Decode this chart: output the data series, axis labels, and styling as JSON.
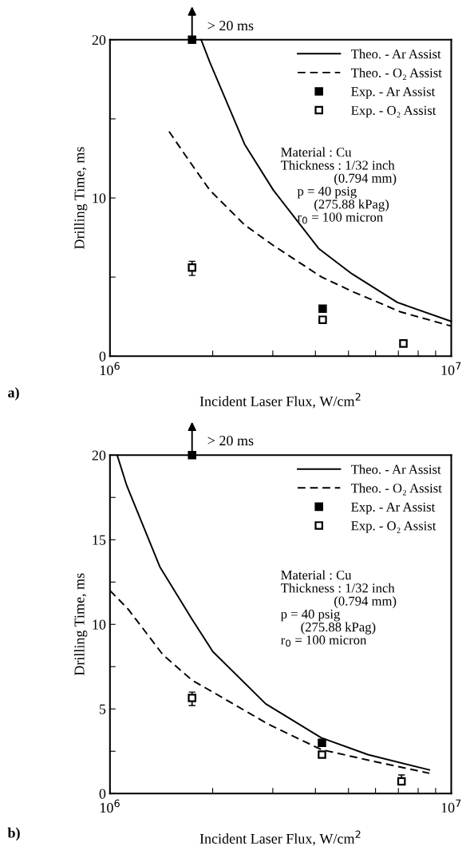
{
  "chart_data": [
    {
      "type": "line",
      "xlabel": "Incident Laser Flux, W/cm$^{2}$",
      "ylabel": "Drilling Time, ms",
      "log": "x",
      "xlim": [
        1000000,
        10000000
      ],
      "xticks": [
        {
          "value": 1000000,
          "label": "10$^{6}$"
        },
        {
          "value": 2000000,
          "label": null
        },
        {
          "value": 3000000,
          "label": null
        },
        {
          "value": 4000000,
          "label": null
        },
        {
          "value": 5000000,
          "label": null
        },
        {
          "value": 6000000,
          "label": null
        },
        {
          "value": 7000000,
          "label": null
        },
        {
          "value": 8000000,
          "label": null
        },
        {
          "value": 9000000,
          "label": null
        },
        {
          "value": 10000000,
          "label": "10$^{7}$"
        }
      ],
      "ylim": [
        0,
        20
      ],
      "yticks": [
        0,
        {
          "value": 5,
          "label": null
        },
        10,
        {
          "value": 15,
          "label": null
        },
        20
      ],
      "grid": false,
      "legend": "top right",
      "annotations": [
        "a)",
        "Material : Cu\nThickness : 1/32 inch\n                (0.794 mm)\n     p = 40 psig\n          (275.88 kPag)\n     r$_{0}$ = 100 micron",
        "> 20 ms"
      ],
      "series": [
        {
          "name": "Theo. - Ar Assist",
          "color": "#000000",
          "line_style": "solid",
          "marker": "none",
          "x": [
            1850000,
            1960000,
            2480000,
            3010000,
            4090000,
            5120000,
            6950000,
            10000000
          ],
          "values": [
            20,
            18.6,
            13.4,
            10.5,
            6.8,
            5.2,
            3.4,
            2.2
          ]
        },
        {
          "name": "Theo. - O₂ Assist",
          "color": "#000000",
          "line_style": "dashed",
          "marker": "none",
          "x": [
            1490000,
            1700000,
            1960000,
            2480000,
            3010000,
            4170000,
            5120000,
            7100000,
            10000000
          ],
          "values": [
            14.2,
            12.4,
            10.5,
            8.3,
            7.0,
            5.0,
            4.1,
            2.8,
            1.9
          ]
        },
        {
          "name": "Exp. - Ar Assist",
          "type": "scatter",
          "color": "#000000",
          "marker": "square",
          "x": [
            1740000,
            4200000
          ],
          "values": [
            20,
            3.0
          ]
        },
        {
          "name": "Exp. - O₂ Assist",
          "type": "scatter",
          "color": "#ffffff",
          "marker": "square",
          "x": [
            1740000,
            4200000,
            7240000
          ],
          "values": [
            5.6,
            2.3,
            0.8
          ],
          "errors": [
            [
              5.1,
              6.0
            ],
            null,
            null
          ]
        }
      ]
    },
    {
      "type": "line",
      "xlabel": "Incident Laser Flux, W/cm$^{2}$",
      "ylabel": "Drilling Time, ms",
      "log": "x",
      "xlim": [
        1000000,
        10000000
      ],
      "xticks": [
        {
          "value": 1000000,
          "label": "10$^{6}$"
        },
        {
          "value": 2000000,
          "label": null
        },
        {
          "value": 3000000,
          "label": null
        },
        {
          "value": 4000000,
          "label": null
        },
        {
          "value": 5000000,
          "label": null
        },
        {
          "value": 6000000,
          "label": null
        },
        {
          "value": 7000000,
          "label": null
        },
        {
          "value": 8000000,
          "label": null
        },
        {
          "value": 9000000,
          "label": null
        },
        {
          "value": 10000000,
          "label": "10$^{7}$"
        }
      ],
      "ylim": [
        0,
        20
      ],
      "yticks": [
        0,
        {
          "value": 2.5,
          "label": null
        },
        5,
        {
          "value": 7.5,
          "label": null
        },
        10,
        {
          "value": 12.5,
          "label": null
        },
        15,
        {
          "value": 17.5,
          "label": null
        },
        20
      ],
      "grid": false,
      "legend": "top right",
      "annotations": [
        "b)",
        "Material : Cu\nThickness : 1/32 inch\n                (0.794 mm)\np = 40 psig\n      (275.88 kPag)\nr$_{0}$ = 100 micron",
        "> 20 ms"
      ],
      "series": [
        {
          "name": "Theo. - Ar Assist",
          "color": "#000000",
          "line_style": "solid",
          "marker": "none",
          "x": [
            1050000,
            1120000,
            1400000,
            1740000,
            2000000,
            2860000,
            4160000,
            5700000,
            8630000
          ],
          "values": [
            20,
            18.2,
            13.4,
            10.3,
            8.4,
            5.3,
            3.3,
            2.3,
            1.4
          ]
        },
        {
          "name": "Theo. - O₂ Assist",
          "color": "#000000",
          "line_style": "dashed",
          "marker": "none",
          "x": [
            1000000,
            1130000,
            1430000,
            1740000,
            2000000,
            2910000,
            4160000,
            5930000,
            8630000
          ],
          "values": [
            12.0,
            10.9,
            8.2,
            6.7,
            6.0,
            4.1,
            2.6,
            1.9,
            1.2
          ]
        },
        {
          "name": "Exp. - Ar Assist",
          "type": "scatter",
          "color": "#000000",
          "marker": "square",
          "x": [
            1740000,
            4180000
          ],
          "values": [
            20,
            3.0
          ]
        },
        {
          "name": "Exp. - O₂ Assist",
          "type": "scatter",
          "color": "#ffffff",
          "marker": "square",
          "x": [
            1740000,
            4180000,
            7150000
          ],
          "values": [
            5.65,
            2.3,
            0.72
          ],
          "errors": [
            [
              5.2,
              6.0
            ],
            null,
            [
              0.6,
              1.1
            ]
          ]
        }
      ]
    }
  ]
}
